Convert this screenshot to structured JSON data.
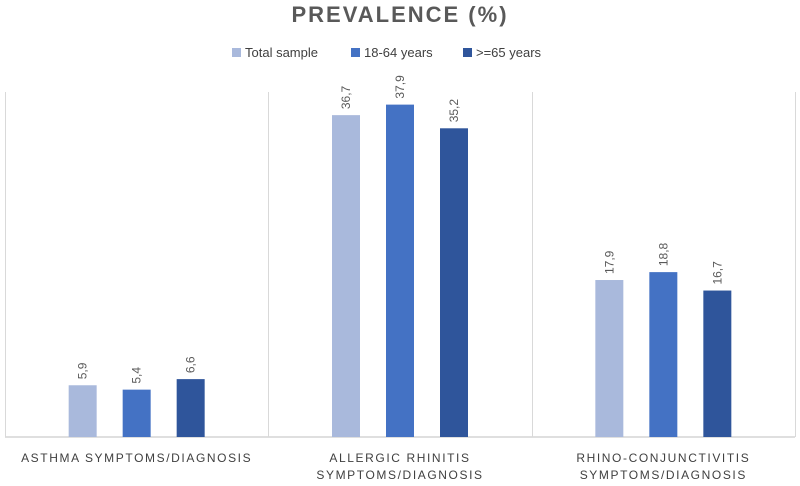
{
  "chart_data": {
    "type": "bar",
    "title": "PREVALENCE (%)",
    "categories": [
      [
        "ASTHMA SYMPTOMS/DIAGNOSIS"
      ],
      [
        "ALLERGIC RHINITIS",
        "SYMPTOMS/DIAGNOSIS"
      ],
      [
        "RHINO-CONJUNCTIVITIS",
        "SYMPTOMS/DIAGNOSIS"
      ]
    ],
    "series": [
      {
        "name": "Total sample",
        "color": "#a9b9dc",
        "values": [
          5.9,
          36.7,
          17.9
        ],
        "labels": [
          "5,9",
          "36,7",
          "17,9"
        ]
      },
      {
        "name": "18-64 years",
        "color": "#4472c4",
        "values": [
          5.4,
          37.9,
          18.8
        ],
        "labels": [
          "5,4",
          "37,9",
          "18,8"
        ]
      },
      {
        "name": ">=65 years",
        "color": "#2f559b",
        "values": [
          6.6,
          35.2,
          16.7
        ],
        "labels": [
          "6,6",
          "35,2",
          "16,7"
        ]
      }
    ],
    "xlabel": "",
    "ylabel": "",
    "ylim": [
      0,
      40
    ],
    "grid": false,
    "legend_position": "top"
  }
}
